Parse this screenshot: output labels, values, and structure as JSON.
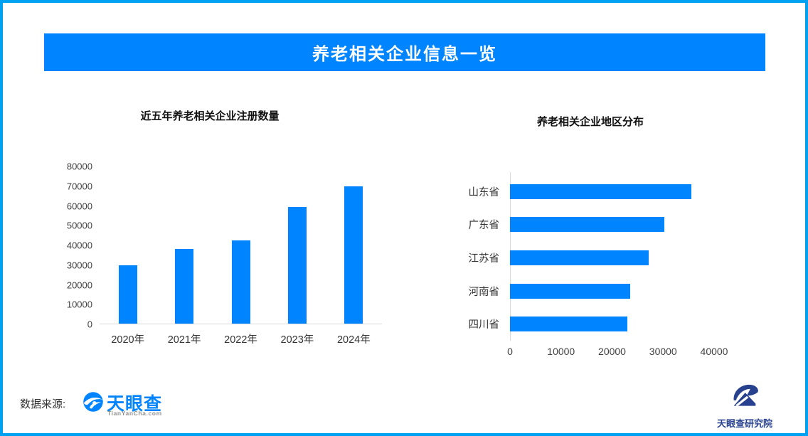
{
  "page": {
    "border_color": "#00A1F1",
    "accent_color": "#0084FF",
    "axis_line_color": "#d9d9d9"
  },
  "banner": {
    "title": "养老相关企业信息一览",
    "bg_color": "#0084FF"
  },
  "chart_data": [
    {
      "type": "bar",
      "title": "近五年养老相关企业注册数量",
      "categories": [
        "2020年",
        "2021年",
        "2022年",
        "2023年",
        "2024年"
      ],
      "values": [
        29500,
        38000,
        42000,
        59000,
        69500
      ],
      "xlabel": "",
      "ylabel": "",
      "ylim": [
        0,
        80000
      ],
      "ytick_step": 10000,
      "grid": false,
      "legend": false,
      "bar_color": "#0084FF"
    },
    {
      "type": "bar-horizontal",
      "title": "养老相关企业地区分布",
      "categories": [
        "山东省",
        "广东省",
        "江苏省",
        "河南省",
        "四川省"
      ],
      "values": [
        35500,
        30300,
        27200,
        23600,
        23000
      ],
      "xlabel": "",
      "ylabel": "",
      "xlim": [
        0,
        40000
      ],
      "xtick_step": 10000,
      "grid": false,
      "legend": false,
      "bar_color": "#0084FF"
    }
  ],
  "footer": {
    "source_label": "数据来源:",
    "tianyancha_wordmark": "天眼查",
    "tianyancha_sub": "TianYanCha.com",
    "research_institute": "天眼查研究院"
  },
  "icons": {
    "tianyancha_logo": "tianyancha-eye-swirl",
    "research_logo": "tianyancha-research-mountain-swoosh"
  }
}
